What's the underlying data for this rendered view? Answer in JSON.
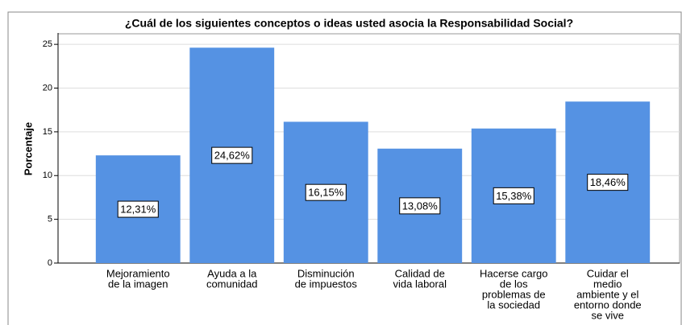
{
  "chart_data": {
    "type": "bar",
    "title": "¿Cuál de los siguientes conceptos o ideas usted asocia la Responsabilidad Social?",
    "y_label": "Porcentaje",
    "categories": [
      [
        "Mejoramiento",
        "de la imagen"
      ],
      [
        "Ayuda a la",
        "comunidad"
      ],
      [
        "Disminución",
        "de impuestos"
      ],
      [
        "Calidad de",
        "vida laboral"
      ],
      [
        "Hacerse cargo",
        "de los",
        "problemas de",
        "la sociedad"
      ],
      [
        "Cuidar el",
        "medio",
        "ambiente y el",
        "entorno donde",
        "se vive"
      ]
    ],
    "values": [
      12.31,
      24.62,
      16.15,
      13.08,
      15.38,
      18.46
    ],
    "value_labels": [
      "12,31%",
      "24,62%",
      "16,15%",
      "13,08%",
      "15,38%",
      "18,46%"
    ],
    "color": "#5592e3",
    "ylim": [
      0,
      26.3
    ],
    "yticks": [
      0,
      5,
      10,
      15,
      20,
      25
    ],
    "grid": true
  }
}
